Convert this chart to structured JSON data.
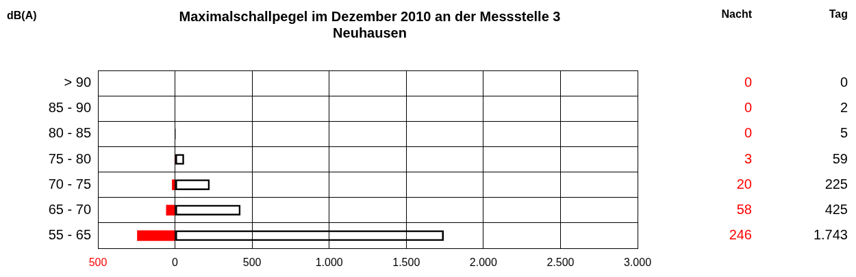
{
  "chart_data": {
    "type": "bar",
    "orientation": "horizontal",
    "title": "Maximalschallpegel im Dezember 2010 an der Messstelle 3 Neuhausen",
    "ylabel": "dB(A)",
    "categories": [
      "> 90",
      "85 - 90",
      "80 - 85",
      "75 - 80",
      "70 - 75",
      "65 - 70",
      "55 - 65"
    ],
    "series": [
      {
        "name": "Nacht",
        "color": "#ff0000",
        "values": [
          0,
          0,
          0,
          3,
          20,
          58,
          246
        ],
        "base": [
          null,
          null,
          null,
          -3,
          -20,
          -58,
          -246
        ],
        "value_labels": [
          "0",
          "0",
          "0",
          "3",
          "20",
          "58",
          "246"
        ]
      },
      {
        "name": "Tag",
        "color": "#000000",
        "values": [
          0,
          2,
          5,
          59,
          225,
          425,
          1743
        ],
        "value_labels": [
          "0",
          "2",
          "5",
          "59",
          "225",
          "425",
          "1.743"
        ]
      }
    ],
    "xlim": [
      -500,
      3000
    ],
    "xticks": [
      {
        "value": -500,
        "label": "500"
      },
      0,
      500,
      {
        "value": 1000,
        "label": "1.000"
      },
      {
        "value": 1500,
        "label": "1.500"
      },
      {
        "value": 2000,
        "label": "2.000"
      },
      {
        "value": 2500,
        "label": "2.500"
      },
      {
        "value": 3000,
        "label": "3.000"
      }
    ],
    "grid": true,
    "legend": false
  }
}
